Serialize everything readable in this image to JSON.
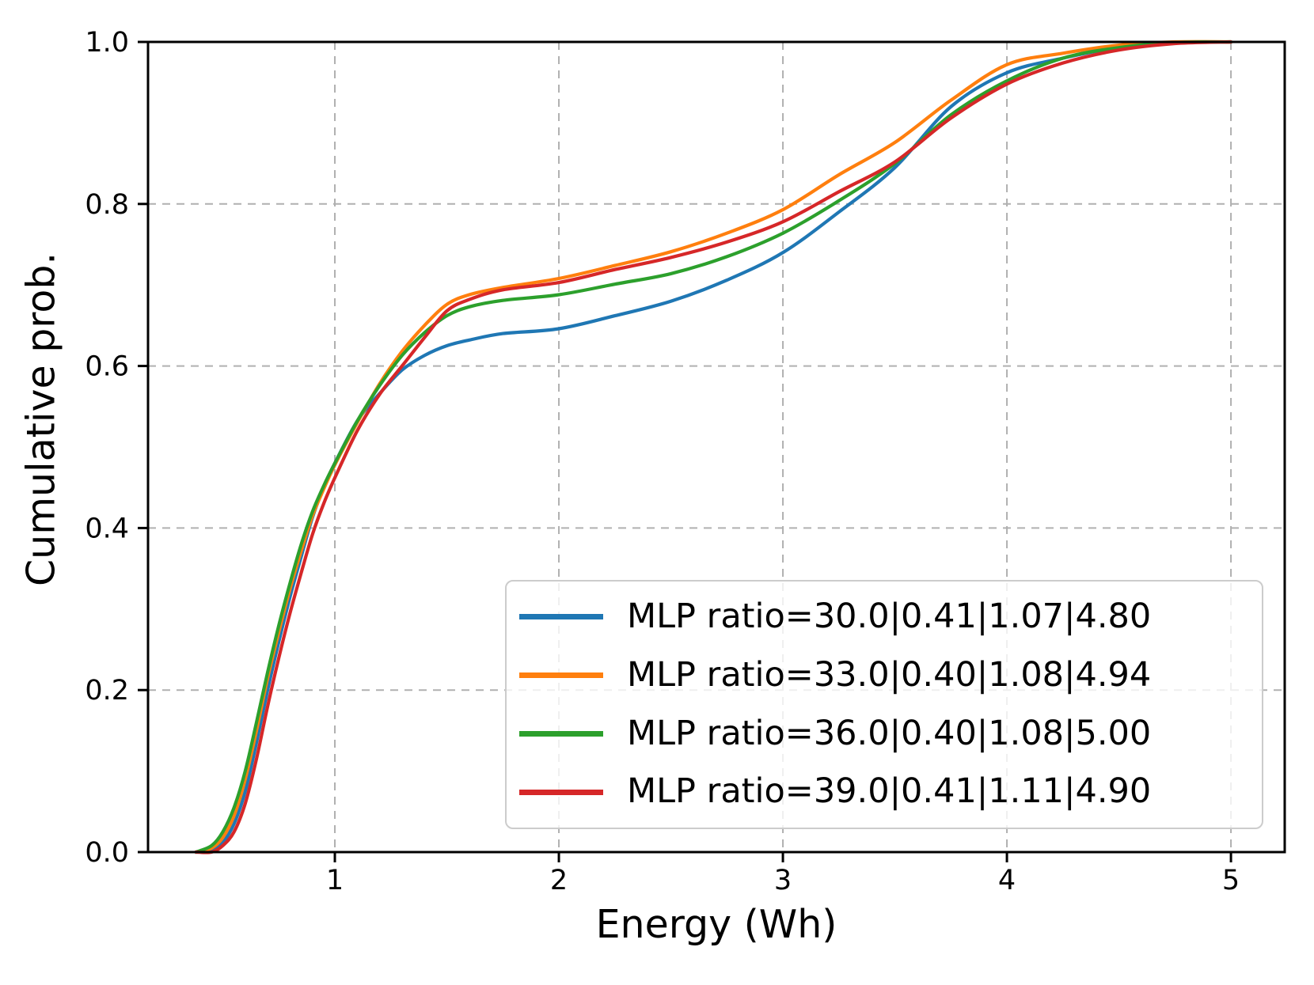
{
  "chart_data": {
    "type": "line",
    "subtype": "empirical-cdf",
    "title": "",
    "xlabel": "Energy (Wh)",
    "ylabel": "Cumulative prob.",
    "xlim": [
      0.166,
      5.24
    ],
    "ylim": [
      0.0,
      1.0
    ],
    "xticks": [
      1,
      2,
      3,
      4,
      5
    ],
    "xtick_labels": [
      "1",
      "2",
      "3",
      "4",
      "5"
    ],
    "yticks": [
      0.0,
      0.2,
      0.4,
      0.6,
      0.8,
      1.0
    ],
    "ytick_labels": [
      "0.0",
      "0.2",
      "0.4",
      "0.6",
      "0.8",
      "1.0"
    ],
    "grid": true,
    "grid_color": "#b0b0b0",
    "grid_style": "dashed",
    "legend_position": "lower-right-inside",
    "x": [
      0.38,
      0.45,
      0.5,
      0.55,
      0.6,
      0.65,
      0.7,
      0.75,
      0.8,
      0.85,
      0.9,
      0.95,
      1.0,
      1.1,
      1.2,
      1.3,
      1.4,
      1.5,
      1.6,
      1.75,
      2.0,
      2.25,
      2.5,
      2.75,
      3.0,
      3.25,
      3.5,
      3.75,
      4.0,
      4.25,
      4.5,
      4.75,
      5.0
    ],
    "series": [
      {
        "name": "MLP ratio=30.0|0.41|1.07|4.80",
        "color": "#1f77b4",
        "values": [
          0.0,
          0.003,
          0.012,
          0.035,
          0.075,
          0.135,
          0.2,
          0.26,
          0.315,
          0.365,
          0.413,
          0.45,
          0.48,
          0.532,
          0.566,
          0.595,
          0.613,
          0.625,
          0.632,
          0.64,
          0.646,
          0.662,
          0.68,
          0.706,
          0.74,
          0.79,
          0.845,
          0.92,
          0.962,
          0.98,
          0.993,
          0.999,
          1.0
        ]
      },
      {
        "name": "MLP ratio=33.0|0.40|1.08|4.94",
        "color": "#ff7f0e",
        "values": [
          0.0,
          0.005,
          0.018,
          0.045,
          0.09,
          0.15,
          0.215,
          0.272,
          0.325,
          0.372,
          0.415,
          0.448,
          0.478,
          0.53,
          0.578,
          0.618,
          0.65,
          0.676,
          0.688,
          0.697,
          0.708,
          0.724,
          0.741,
          0.764,
          0.793,
          0.836,
          0.876,
          0.928,
          0.972,
          0.986,
          0.996,
          1.0,
          1.0
        ]
      },
      {
        "name": "MLP ratio=36.0|0.40|1.08|5.00",
        "color": "#2ca02c",
        "values": [
          0.0,
          0.008,
          0.025,
          0.055,
          0.1,
          0.16,
          0.222,
          0.28,
          0.332,
          0.38,
          0.42,
          0.452,
          0.48,
          0.532,
          0.576,
          0.613,
          0.641,
          0.662,
          0.673,
          0.681,
          0.688,
          0.701,
          0.714,
          0.735,
          0.764,
          0.804,
          0.85,
          0.91,
          0.952,
          0.98,
          0.993,
          0.999,
          1.0
        ]
      },
      {
        "name": "MLP ratio=39.0|0.41|1.11|4.90",
        "color": "#d62728",
        "values": [
          0.0,
          0.0,
          0.008,
          0.025,
          0.06,
          0.115,
          0.18,
          0.24,
          0.295,
          0.345,
          0.392,
          0.43,
          0.462,
          0.52,
          0.565,
          0.6,
          0.635,
          0.668,
          0.682,
          0.694,
          0.703,
          0.719,
          0.734,
          0.753,
          0.778,
          0.815,
          0.852,
          0.906,
          0.948,
          0.974,
          0.99,
          0.998,
          1.0
        ]
      }
    ]
  }
}
